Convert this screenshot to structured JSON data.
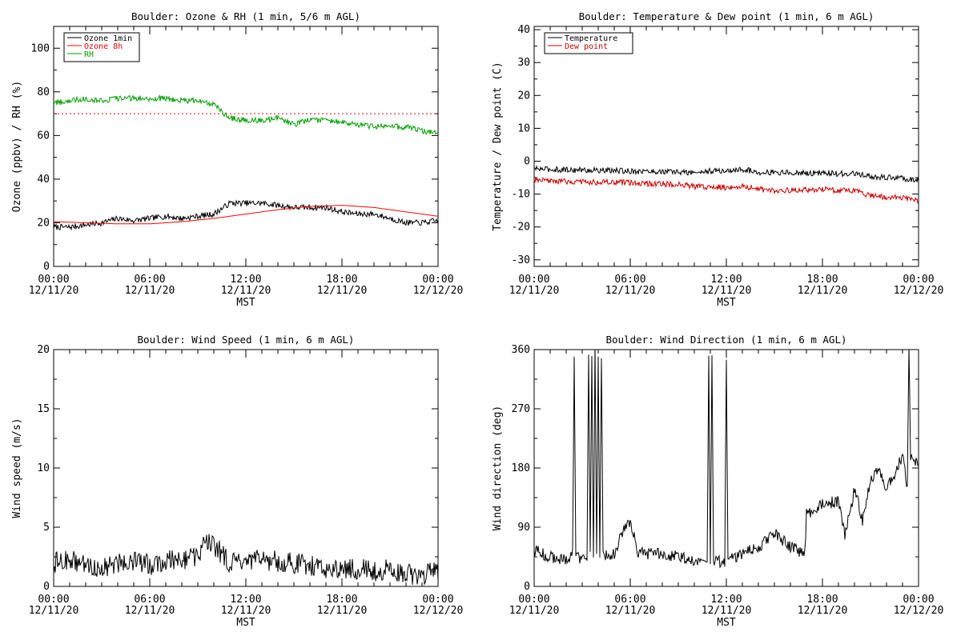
{
  "chart_data": [
    {
      "type": "line",
      "title": "Boulder: Ozone & RH (1 min, 5/6 m AGL)",
      "xlabel": "MST",
      "ylabel": "Ozone (ppbv) / RH (%)",
      "xlim": [
        0,
        24
      ],
      "ylim": [
        0,
        110
      ],
      "yticks": [
        0,
        20,
        40,
        60,
        80,
        100
      ],
      "legend": "top-left",
      "series": [
        {
          "name": "Ozone 1min",
          "color": "#000000",
          "style": "solid",
          "x": [
            0,
            1,
            2,
            3,
            4,
            5,
            6,
            7,
            8,
            9,
            10,
            11,
            12,
            13,
            14,
            15,
            16,
            17,
            18,
            19,
            20,
            21,
            22,
            23,
            24
          ],
          "y": [
            18,
            18,
            19,
            20,
            22,
            21,
            22,
            23,
            22,
            23,
            24,
            29,
            29,
            29,
            28,
            27,
            27,
            27,
            25,
            24,
            24,
            22,
            20,
            20,
            21
          ]
        },
        {
          "name": "Ozone 8h",
          "color": "#ff0000",
          "style": "solid",
          "x": [
            0,
            2,
            4,
            6,
            8,
            10,
            12,
            14,
            16,
            18,
            20,
            22,
            24
          ],
          "y": [
            20.5,
            20,
            19.5,
            19.5,
            20.5,
            22,
            24,
            26,
            27.5,
            28,
            27,
            25,
            23
          ]
        },
        {
          "name": "",
          "color": "#ff0000",
          "style": "dotted",
          "x": [
            0,
            24
          ],
          "y": [
            70,
            70
          ]
        },
        {
          "name": "RH",
          "color": "#00a000",
          "style": "solid",
          "x": [
            0,
            1,
            2,
            3,
            4,
            5,
            6,
            7,
            8,
            9,
            10,
            11,
            12,
            13,
            14,
            15,
            16,
            17,
            18,
            19,
            20,
            21,
            22,
            23,
            24
          ],
          "y": [
            75,
            76,
            77,
            76,
            77,
            77,
            77,
            77,
            76,
            76,
            74,
            68,
            67,
            67,
            68,
            65,
            67,
            67,
            66,
            65,
            64,
            64,
            64,
            62,
            61
          ]
        }
      ]
    },
    {
      "type": "line",
      "title": "Boulder: Temperature & Dew point (1 min, 6 m AGL)",
      "xlabel": "MST",
      "ylabel": "Temperature / Dew point (C)",
      "xlim": [
        0,
        24
      ],
      "ylim": [
        -32,
        41
      ],
      "yticks": [
        -30,
        -20,
        -10,
        0,
        10,
        20,
        30,
        40
      ],
      "legend": "top-left",
      "series": [
        {
          "name": "Temperature",
          "color": "#000000",
          "style": "solid",
          "x": [
            0,
            1,
            2,
            3,
            4,
            5,
            6,
            7,
            8,
            9,
            10,
            11,
            12,
            13,
            14,
            15,
            16,
            17,
            18,
            19,
            20,
            21,
            22,
            23,
            24
          ],
          "y": [
            -2.3,
            -2.5,
            -2.6,
            -2.7,
            -2.8,
            -2.9,
            -3.0,
            -3.1,
            -3.2,
            -3.3,
            -3.5,
            -3.0,
            -3.0,
            -2.5,
            -3.3,
            -3.4,
            -3.5,
            -3.6,
            -3.6,
            -3.8,
            -3.8,
            -4.8,
            -4.9,
            -5.2,
            -5.8
          ]
        },
        {
          "name": "Dew point",
          "color": "#cc0000",
          "style": "solid",
          "x": [
            0,
            1,
            2,
            3,
            4,
            5,
            6,
            7,
            8,
            9,
            10,
            11,
            12,
            13,
            14,
            15,
            16,
            17,
            18,
            19,
            20,
            21,
            22,
            23,
            24
          ],
          "y": [
            -5.9,
            -6.0,
            -6.2,
            -6.3,
            -6.4,
            -6.5,
            -6.6,
            -6.8,
            -6.9,
            -7.2,
            -7.6,
            -7.9,
            -7.9,
            -7.6,
            -8.5,
            -9.0,
            -8.8,
            -8.7,
            -8.6,
            -8.8,
            -9.0,
            -10.6,
            -10.9,
            -11.2,
            -12.0
          ]
        }
      ]
    },
    {
      "type": "line",
      "title": "Boulder: Wind Speed (1 min, 6 m AGL)",
      "xlabel": "MST",
      "ylabel": "Wind speed (m/s)",
      "xlim": [
        0,
        24
      ],
      "ylim": [
        0,
        20
      ],
      "yticks": [
        0,
        5,
        10,
        15,
        20
      ],
      "series": [
        {
          "name": "",
          "color": "#000000",
          "style": "solid",
          "x": [
            0,
            1,
            2,
            3,
            4,
            5,
            6,
            7,
            8,
            9,
            9.5,
            10,
            11,
            12,
            13,
            14,
            15,
            16,
            17,
            18,
            19,
            20,
            21,
            22,
            23,
            24
          ],
          "y": [
            2.0,
            2.2,
            1.8,
            1.5,
            2.0,
            2.2,
            1.8,
            2.2,
            2.3,
            2.5,
            3.8,
            3.5,
            2.0,
            1.9,
            2.3,
            2.1,
            2.0,
            1.7,
            1.6,
            1.4,
            1.5,
            1.3,
            1.4,
            1.1,
            0.9,
            1.4
          ]
        }
      ]
    },
    {
      "type": "line",
      "title": "Boulder: Wind Direction (1 min, 6 m AGL)",
      "xlabel": "MST",
      "ylabel": "Wind direction (deg)",
      "xlim": [
        0,
        24
      ],
      "ylim": [
        0,
        360
      ],
      "yticks": [
        0,
        90,
        180,
        270,
        360
      ],
      "series": [
        {
          "name": "",
          "color": "#000000",
          "style": "solid",
          "x": [
            0,
            1,
            2,
            2.4,
            2.5,
            2.6,
            3.3,
            3.4,
            3.5,
            3.6,
            3.7,
            3.8,
            3.9,
            4.0,
            4.1,
            4.2,
            4.3,
            5.0,
            5.5,
            6.0,
            6.5,
            7,
            8,
            9,
            10,
            10.8,
            10.9,
            11.0,
            11.1,
            11.2,
            11.9,
            12.0,
            12.1,
            13,
            14,
            15,
            16,
            16.9,
            17,
            18,
            19,
            19.4,
            19.8,
            20,
            20.5,
            21,
            21.5,
            22,
            22.5,
            23,
            23.3,
            23.4,
            23.5,
            24
          ],
          "y": [
            55,
            45,
            40,
            48,
            350,
            45,
            40,
            360,
            50,
            345,
            40,
            360,
            45,
            350,
            40,
            355,
            45,
            50,
            80,
            100,
            50,
            50,
            50,
            45,
            40,
            35,
            350,
            40,
            345,
            40,
            35,
            350,
            40,
            50,
            60,
            80,
            60,
            50,
            110,
            125,
            130,
            80,
            120,
            150,
            100,
            160,
            180,
            150,
            170,
            200,
            150,
            360,
            200,
            180
          ]
        }
      ]
    }
  ]
}
